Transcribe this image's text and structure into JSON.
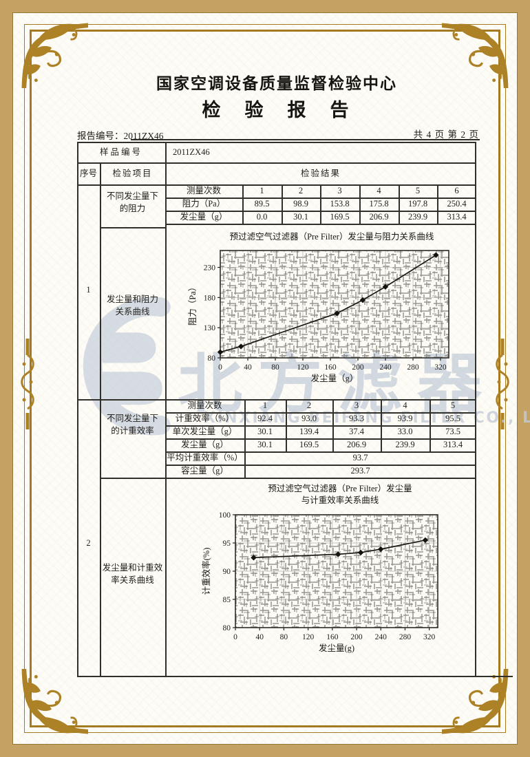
{
  "header": {
    "org": "国家空调设备质量监督检验中心",
    "title": "检　验　报　告",
    "report_no_label": "报告编号：",
    "report_no": "2011ZX46",
    "pagination": "共 4 页 第 2 页"
  },
  "sample": {
    "label": "样品编号",
    "value": "2011ZX46"
  },
  "columns": {
    "seq": "序号",
    "item": "检验项目",
    "result": "检验结果"
  },
  "section1": {
    "seq": "1",
    "item_resistance_l1": "不同发尘量下",
    "item_resistance_l2": "的阻力",
    "item_curve_l1": "发尘量和阻力",
    "item_curve_l2": "关系曲线",
    "meas_label": "测量次数",
    "resistance_label": "阻力（Pa）",
    "dust_label": "发尘量（g）",
    "meas": [
      "1",
      "2",
      "3",
      "4",
      "5",
      "6"
    ],
    "resistance": [
      "89.5",
      "98.9",
      "153.8",
      "175.8",
      "197.8",
      "250.4"
    ],
    "dust": [
      "0.0",
      "30.1",
      "169.5",
      "206.9",
      "239.9",
      "313.4"
    ]
  },
  "section2": {
    "seq": "2",
    "item_eff_l1": "不同发尘量下",
    "item_eff_l2": "的计重效率",
    "item_curve_l1": "发尘量和计重效",
    "item_curve_l2": "率关系曲线",
    "meas_label": "测量次数",
    "eff_label": "计重效率（%）",
    "single_label": "单次发尘量（g）",
    "dust_label": "发尘量（g）",
    "avg_label": "平均计重效率（%）",
    "capacity_label": "容尘量（g）",
    "meas": [
      "1",
      "2",
      "3",
      "4",
      "5"
    ],
    "eff": [
      "92.4",
      "93.0",
      "93.3",
      "93.9",
      "95.5"
    ],
    "single": [
      "30.1",
      "139.4",
      "37.4",
      "33.0",
      "73.5"
    ],
    "dust": [
      "30.1",
      "169.5",
      "206.9",
      "239.9",
      "313.4"
    ],
    "avg": "93.7",
    "capacity": "293.7"
  },
  "watermark": {
    "cn": "北方滤器",
    "en": "XINXIANG BEIFANG FILTER CO., LTD."
  },
  "colors": {
    "frame_gold": "#a5791f",
    "band_tan": "#c4a263",
    "ink": "#1f1e1a",
    "watermark_blue": "#b7c2d4"
  },
  "chart_data": [
    {
      "type": "line",
      "title": "预过滤空气过滤器（Pre Filter）发尘量与阻力关系曲线",
      "xlabel": "发尘量（g）",
      "ylabel": "阻力（Pa）",
      "x": [
        0,
        30.1,
        169.5,
        206.9,
        239.9,
        313.4
      ],
      "y": [
        89.5,
        98.9,
        153.8,
        175.8,
        197.8,
        250.4
      ],
      "xlim": [
        0,
        332
      ],
      "ylim": [
        80,
        258
      ],
      "xticks": [
        0,
        40,
        80,
        120,
        160,
        200,
        240,
        280,
        320
      ],
      "yticks": [
        80,
        130,
        180,
        230
      ],
      "marker": "diamond",
      "grid": true,
      "legend": false
    },
    {
      "type": "line",
      "title": "预过滤空气过滤器（Pre Filter）发尘量与计重效率关系曲线",
      "title_lines": [
        "预过滤空气过滤器（Pre Filter）发尘量",
        "与计重效率关系曲线"
      ],
      "xlabel": "发尘量(g)",
      "ylabel": "计重效率(%)",
      "x": [
        30.1,
        169.5,
        206.9,
        239.9,
        313.4
      ],
      "y": [
        92.4,
        93.0,
        93.3,
        93.9,
        95.5
      ],
      "xlim": [
        0,
        334
      ],
      "ylim": [
        80,
        100
      ],
      "xticks": [
        0,
        40,
        80,
        120,
        160,
        200,
        240,
        280,
        320
      ],
      "yticks": [
        80,
        85,
        90,
        95,
        100
      ],
      "marker": "diamond",
      "grid": true,
      "legend": false
    }
  ]
}
